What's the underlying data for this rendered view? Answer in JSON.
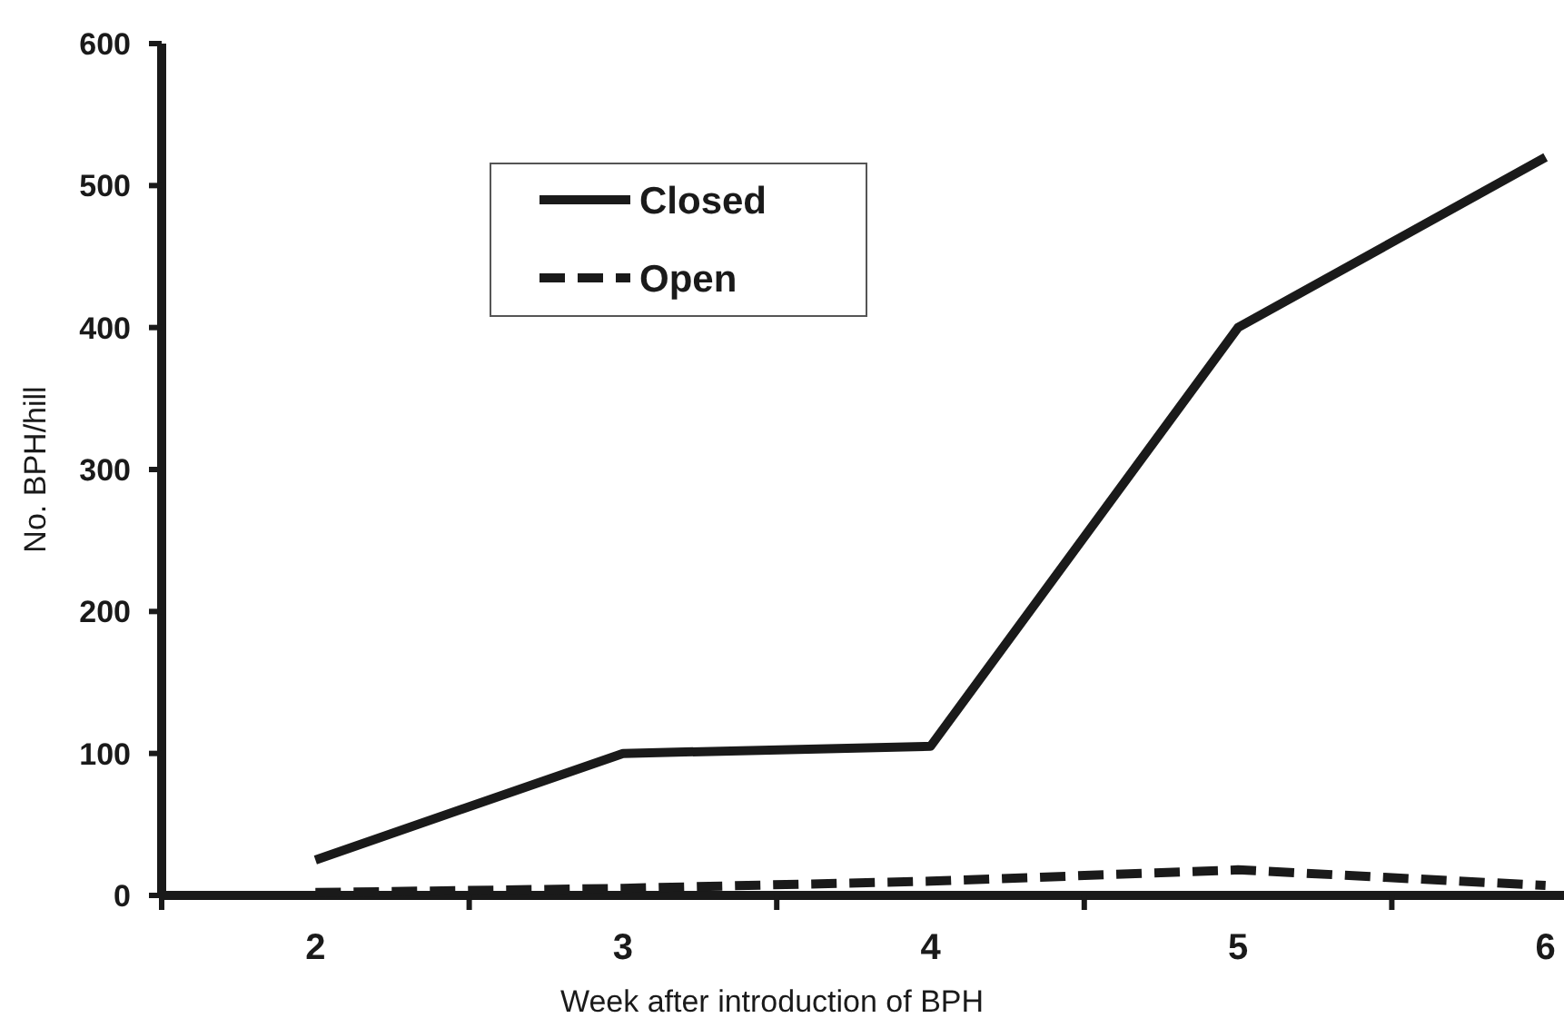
{
  "chart_data": {
    "type": "line",
    "xlabel": "Week after introduction of BPH",
    "ylabel": "No. BPH/hill",
    "categories": [
      "2",
      "3",
      "4",
      "5",
      "6"
    ],
    "series": [
      {
        "name": "Closed",
        "color": "#1a1a1a",
        "values": [
          25,
          100,
          105,
          400,
          520
        ],
        "line_style": "solid"
      },
      {
        "name": "Open",
        "color": "#1a1a1a",
        "values": [
          2,
          5,
          10,
          18,
          7
        ],
        "line_style": "dashed"
      }
    ],
    "ylim": [
      0,
      600
    ],
    "yticks": [
      0,
      100,
      200,
      300,
      400,
      500,
      600
    ],
    "legend": "top left",
    "grid": false,
    "marker": "none"
  }
}
